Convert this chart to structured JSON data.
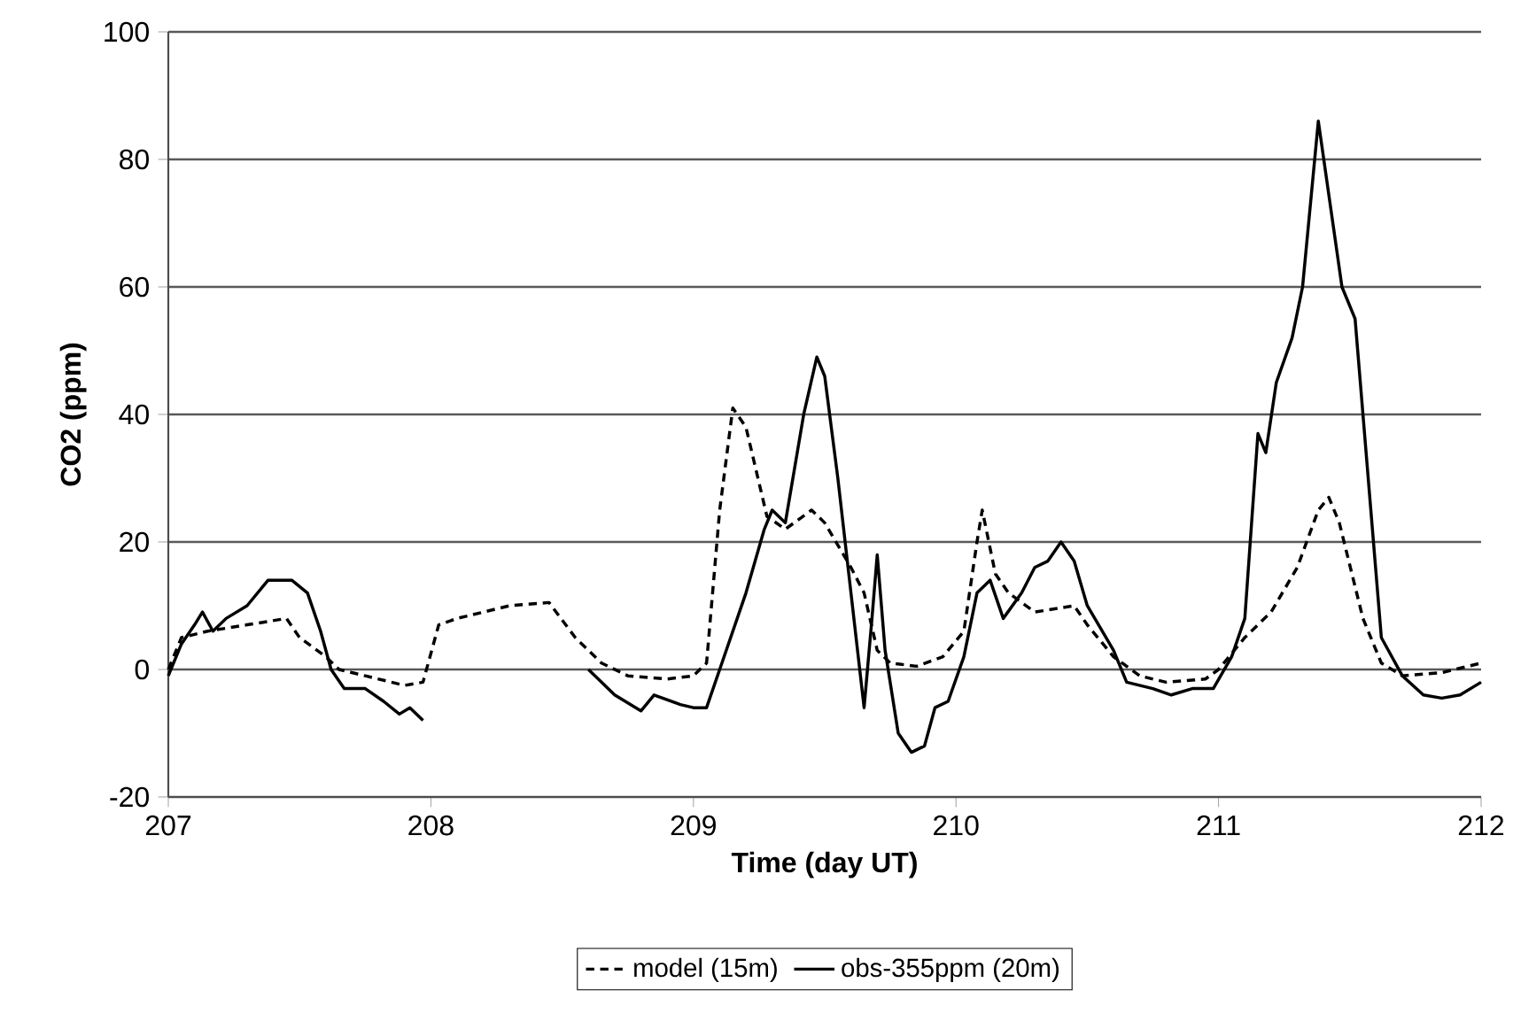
{
  "chart_data": {
    "type": "line",
    "xlabel": "Time (day UT)",
    "ylabel": "CO2 (ppm)",
    "xlim": [
      207,
      212
    ],
    "xticks": [
      207,
      208,
      209,
      210,
      211,
      212
    ],
    "ylim": [
      -20,
      100
    ],
    "yticks": [
      -20,
      0,
      20,
      40,
      60,
      80,
      100
    ],
    "grid": "y",
    "legend": "bottom",
    "marker": "none",
    "series": [
      {
        "name": "model (15m)",
        "color": "#000000",
        "line_style": "dashed",
        "x": [
          207.0,
          207.05,
          207.15,
          207.3,
          207.45,
          207.5,
          207.6,
          207.65,
          207.75,
          207.9,
          207.97,
          208.03,
          208.1,
          208.3,
          208.45,
          208.55,
          208.65,
          208.75,
          208.9,
          209.0,
          209.05,
          209.1,
          209.15,
          209.2,
          209.28,
          209.35,
          209.45,
          209.5,
          209.6,
          209.65,
          209.7,
          209.75,
          209.85,
          209.95,
          210.03,
          210.08,
          210.1,
          210.15,
          210.2,
          210.3,
          210.45,
          210.5,
          210.6,
          210.7,
          210.8,
          210.95,
          211.0,
          211.1,
          211.2,
          211.3,
          211.38,
          211.42,
          211.46,
          211.55,
          211.62,
          211.7,
          211.85,
          212.0
        ],
        "values": [
          0,
          5,
          6,
          7,
          8,
          5,
          2,
          0,
          -1,
          -2.5,
          -2,
          7,
          8,
          10,
          10.5,
          5,
          1,
          -1,
          -1.5,
          -1,
          1,
          25,
          41,
          38,
          24,
          22,
          25,
          23,
          16,
          12,
          3,
          1,
          0.5,
          2,
          6,
          20,
          25,
          15,
          12,
          9,
          10,
          7,
          2,
          -1,
          -2,
          -1.5,
          0,
          5,
          9,
          16,
          25,
          27,
          23,
          8,
          1,
          -1,
          -0.5,
          1
        ]
      },
      {
        "name": "obs-355ppm (20m)",
        "color": "#000000",
        "line_style": "solid",
        "x": [
          207.0,
          207.05,
          207.1,
          207.13,
          207.17,
          207.22,
          207.3,
          207.38,
          207.47,
          207.53,
          207.58,
          207.62,
          207.67,
          207.75,
          207.82,
          207.88,
          207.92,
          207.97,
          208.3,
          208.6,
          208.7,
          208.8,
          208.85,
          208.95,
          209.0,
          209.05,
          209.1,
          209.2,
          209.27,
          209.3,
          209.35,
          209.42,
          209.47,
          209.5,
          209.55,
          209.6,
          209.65,
          209.68,
          209.7,
          209.73,
          209.78,
          209.83,
          209.88,
          209.92,
          209.97,
          210.03,
          210.08,
          210.13,
          210.18,
          210.25,
          210.3,
          210.35,
          210.4,
          210.45,
          210.5,
          210.6,
          210.65,
          210.75,
          210.82,
          210.9,
          210.98,
          211.05,
          211.1,
          211.15,
          211.18,
          211.22,
          211.28,
          211.32,
          211.38,
          211.47,
          211.52,
          211.58,
          211.62,
          211.66,
          211.7,
          211.78,
          211.85,
          211.92,
          212.0
        ],
        "values": [
          -1,
          4,
          7,
          9,
          6,
          8,
          10,
          14,
          14,
          12,
          6,
          0,
          -3,
          -3,
          -5,
          -7,
          -6,
          -8,
          null,
          0,
          -4,
          -6.5,
          -4,
          -5.5,
          -6,
          -6,
          0,
          12,
          22,
          25,
          23,
          40,
          49,
          46,
          30,
          12,
          -6,
          8,
          18,
          3,
          -10,
          -13,
          -12,
          -6,
          -5,
          2,
          12,
          14,
          8,
          12,
          16,
          17,
          20,
          17,
          10,
          3,
          -2,
          -3,
          -4,
          -3,
          -3,
          2,
          8,
          37,
          34,
          45,
          52,
          60,
          86,
          60,
          55,
          25,
          5,
          2,
          -1,
          -4,
          -4.5,
          -4,
          -2
        ]
      }
    ]
  }
}
